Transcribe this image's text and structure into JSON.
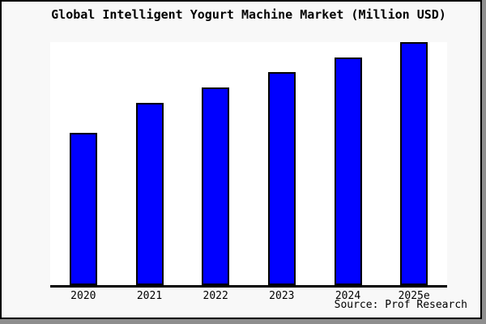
{
  "colors": {
    "bar_fill": "#0000ff",
    "bar_edge": "#000000",
    "panel_background": "#f8f8f8",
    "plot_background": "#ffffff",
    "axis": "#000000",
    "frame_border": "#000000",
    "shadow": "#8e8e8e",
    "text": "#000000"
  },
  "source_credit": "Source: Prof Research",
  "chart_data": {
    "type": "bar",
    "title": "Global Intelligent Yogurt Machine Market (Million USD)",
    "categories": [
      "2020",
      "2021",
      "2022",
      "2023",
      "2024",
      "2025e"
    ],
    "values": [
      62.7,
      75.0,
      81.3,
      87.7,
      93.7,
      100.0
    ],
    "value_units": "relative index (no y-axis tick labels shown; 2025e bar = 100 = full plot height)",
    "xlabel": "",
    "ylabel": "",
    "ylim": [
      0,
      100
    ],
    "grid": false,
    "legend": "none",
    "y_axis_visible": false,
    "x_axis_visible": true,
    "annotations": [
      "Source: Prof Research"
    ]
  }
}
